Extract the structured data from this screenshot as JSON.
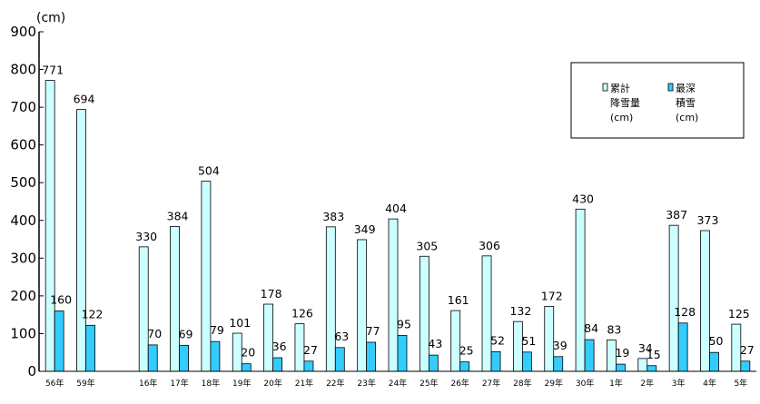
{
  "chart_data": {
    "type": "bar",
    "unit_label": "(cm)",
    "categories": [
      "56年",
      "59年",
      "",
      "16年",
      "17年",
      "18年",
      "19年",
      "20年",
      "21年",
      "22年",
      "23年",
      "24年",
      "25年",
      "26年",
      "27年",
      "28年",
      "29年",
      "30年",
      "1年",
      "2年",
      "3年",
      "4年",
      "5年"
    ],
    "series": [
      {
        "name": "累計降雪量(cm)",
        "legend_lines": [
          "累計",
          "降雪量",
          "(cm)"
        ],
        "color": "#ccffff",
        "values": [
          771,
          694,
          null,
          330,
          384,
          504,
          101,
          178,
          126,
          383,
          349,
          404,
          305,
          161,
          306,
          132,
          172,
          430,
          83,
          34,
          387,
          373,
          125
        ]
      },
      {
        "name": "最深積雪(cm)",
        "legend_lines": [
          "最深",
          "積雪",
          "(cm)"
        ],
        "color": "#33ccff",
        "values": [
          160,
          122,
          null,
          70,
          69,
          79,
          20,
          36,
          27,
          63,
          77,
          95,
          43,
          25,
          52,
          51,
          39,
          84,
          19,
          15,
          128,
          50,
          27
        ]
      }
    ],
    "yticks": [
      "0",
      "100",
      "200",
      "300",
      "400",
      "500",
      "600",
      "700",
      "800",
      "900"
    ],
    "ylim": [
      0,
      900
    ],
    "grid": false,
    "legend_position": "top-right"
  }
}
